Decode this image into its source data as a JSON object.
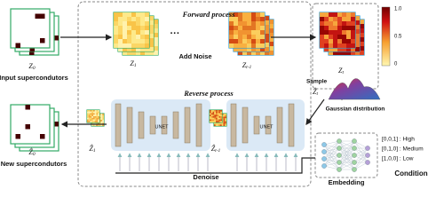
{
  "input": {
    "symbol": "Z",
    "sub": "0",
    "caption": "Input supercondutors"
  },
  "forward": {
    "title": "Forward process",
    "z1": {
      "symbol": "Z",
      "sub": "1"
    },
    "ellipsis": "···",
    "add_noise": "Add Noise",
    "zt1": {
      "symbol": "Z",
      "sub": "t-1"
    }
  },
  "latent": {
    "zt": {
      "symbol": "Z",
      "sub": "t"
    },
    "colorbar": [
      "1.0",
      "0.5",
      "0"
    ],
    "sample": "Sample",
    "zhat_t": {
      "symbol": "Ẑ",
      "sub": "t"
    },
    "gaussian": "Gaussian distribution"
  },
  "reverse": {
    "title": "Reverse process",
    "unet_left": "UNET",
    "unet_right": "UNET",
    "zhat1": {
      "symbol": "Ẑ",
      "sub": "1"
    },
    "zhatt1": {
      "symbol": "Ẑ",
      "sub": "t-1"
    },
    "denoise": "Denoise"
  },
  "output": {
    "symbol": "Ẑ",
    "sub": "0",
    "caption": "New supercondutors"
  },
  "condition": {
    "lines": [
      "[0,0,1] : High",
      "[0,1,0] : Medium",
      "[1,0,0] : Low"
    ],
    "label": "Condition",
    "embedding": "Embedding"
  }
}
